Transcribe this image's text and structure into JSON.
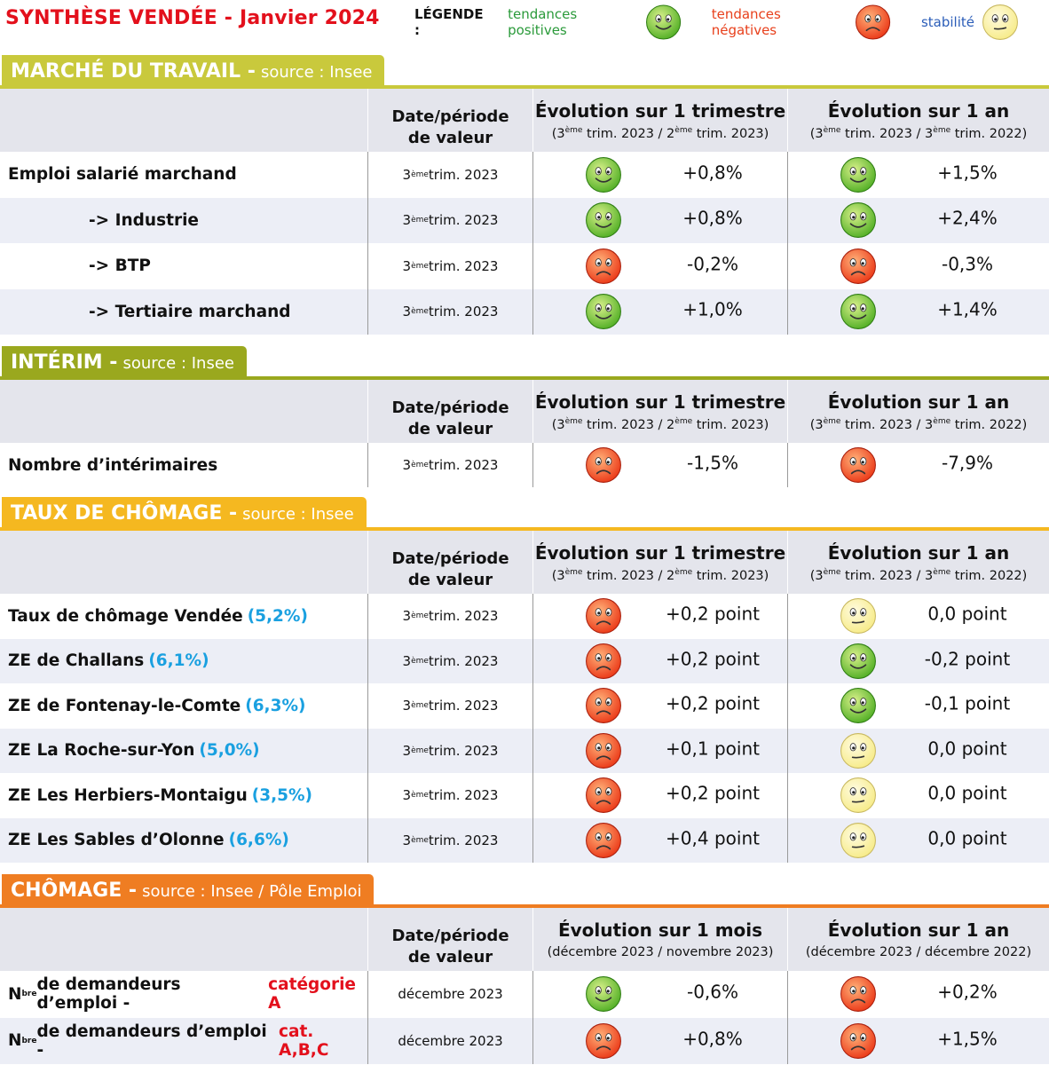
{
  "header": {
    "title": "SYNTHÈSE VENDÉE - Janvier 2024",
    "legend_label": "LÉGENDE :",
    "legend": [
      {
        "text": "tendances positives",
        "color": "#2a9a3a",
        "trend": "positive"
      },
      {
        "text": "tendances négatives",
        "color": "#e8401c",
        "trend": "negative"
      },
      {
        "text": "stabilité",
        "color": "#2b5db8",
        "trend": "stable"
      }
    ]
  },
  "sections": [
    {
      "title": "MARCHÉ DU TRAVAIL -",
      "source": "source : Insee",
      "color": "#c9c93c",
      "note_color": "#1aa0e0",
      "columns": [
        {
          "title": "Date/période de valeur"
        },
        {
          "title": "Évolution sur 1 trimestre",
          "sub": [
            "(3",
            "ème",
            " trim. 2023 / 2",
            "ème",
            " trim. 2023)"
          ]
        },
        {
          "title": "Évolution sur 1 an",
          "sub": [
            "(3",
            "ème",
            " trim. 2023 / 3",
            "ème",
            " trim. 2022)"
          ]
        }
      ],
      "rows": [
        {
          "label": [
            "Emploi salarié marchand"
          ],
          "level": 0,
          "date": [
            "3",
            "ème",
            " trim. 2023"
          ],
          "evolutions": [
            {
              "trend": "positive",
              "value": "+0,8%"
            },
            {
              "trend": "positive",
              "value": "+1,5%"
            }
          ]
        },
        {
          "label": [
            "-> Industrie"
          ],
          "level": 1,
          "date": [
            "3",
            "ème",
            " trim. 2023"
          ],
          "evolutions": [
            {
              "trend": "positive",
              "value": "+0,8%"
            },
            {
              "trend": "positive",
              "value": "+2,4%"
            }
          ]
        },
        {
          "label": [
            "-> BTP"
          ],
          "level": 1,
          "date": [
            "3",
            "ème",
            " trim. 2023"
          ],
          "evolutions": [
            {
              "trend": "negative",
              "value": "-0,2%"
            },
            {
              "trend": "negative",
              "value": "-0,3%"
            }
          ]
        },
        {
          "label": [
            "-> Tertiaire marchand"
          ],
          "level": 1,
          "date": [
            "3",
            "ème",
            " trim. 2023"
          ],
          "evolutions": [
            {
              "trend": "positive",
              "value": "+1,0%"
            },
            {
              "trend": "positive",
              "value": "+1,4%"
            }
          ]
        }
      ]
    },
    {
      "title": "INTÉRIM -",
      "source": "source : Insee",
      "color": "#9aa81e",
      "note_color": "#1aa0e0",
      "columns": [
        {
          "title": "Date/période de valeur"
        },
        {
          "title": "Évolution sur 1 trimestre",
          "sub": [
            "(3",
            "ème",
            " trim. 2023 / 2",
            "ème",
            " trim. 2023)"
          ]
        },
        {
          "title": "Évolution sur 1 an",
          "sub": [
            "(3",
            "ème",
            " trim. 2023 / 3",
            "ème",
            " trim. 2022)"
          ]
        }
      ],
      "rows": [
        {
          "label": [
            "Nombre d’intérimaires"
          ],
          "level": 0,
          "date": [
            "3",
            "ème",
            " trim. 2023"
          ],
          "evolutions": [
            {
              "trend": "negative",
              "value": "-1,5%"
            },
            {
              "trend": "negative",
              "value": "-7,9%"
            }
          ]
        }
      ]
    },
    {
      "title": "TAUX DE CHÔMAGE -",
      "source": "source : Insee",
      "color": "#f5b820",
      "note_color": "#1aa0e0",
      "columns": [
        {
          "title": "Date/période de valeur"
        },
        {
          "title": "Évolution sur 1 trimestre",
          "sub": [
            "(3",
            "ème",
            " trim. 2023 / 2",
            "ème",
            " trim. 2023)"
          ]
        },
        {
          "title": "Évolution sur 1 an",
          "sub": [
            "(3",
            "ème",
            " trim. 2023 / 3",
            "ème",
            " trim. 2022)"
          ]
        }
      ],
      "rows": [
        {
          "label": [
            "Taux de chômage Vendée "
          ],
          "note": "(5,2%)",
          "level": 0,
          "date": [
            "3",
            "ème",
            " trim. 2023"
          ],
          "evolutions": [
            {
              "trend": "negative",
              "value": "+0,2 point"
            },
            {
              "trend": "stable",
              "value": "0,0 point"
            }
          ]
        },
        {
          "label": [
            "ZE de Challans "
          ],
          "note": "(6,1%)",
          "level": 0,
          "date": [
            "3",
            "ème",
            " trim. 2023"
          ],
          "evolutions": [
            {
              "trend": "negative",
              "value": "+0,2 point"
            },
            {
              "trend": "positive",
              "value": "-0,2 point"
            }
          ]
        },
        {
          "label": [
            "ZE de Fontenay-le-Comte "
          ],
          "note": "(6,3%)",
          "level": 0,
          "date": [
            "3",
            "ème",
            " trim. 2023"
          ],
          "evolutions": [
            {
              "trend": "negative",
              "value": "+0,2 point"
            },
            {
              "trend": "positive",
              "value": "-0,1 point"
            }
          ]
        },
        {
          "label": [
            "ZE La Roche-sur-Yon "
          ],
          "note": "(5,0%)",
          "level": 0,
          "date": [
            "3",
            "ème",
            " trim. 2023"
          ],
          "evolutions": [
            {
              "trend": "negative",
              "value": "+0,1 point"
            },
            {
              "trend": "stable",
              "value": "0,0 point"
            }
          ]
        },
        {
          "label": [
            "ZE Les Herbiers-Montaigu "
          ],
          "note": "(3,5%)",
          "level": 0,
          "date": [
            "3",
            "ème",
            " trim. 2023"
          ],
          "evolutions": [
            {
              "trend": "negative",
              "value": "+0,2 point"
            },
            {
              "trend": "stable",
              "value": "0,0 point"
            }
          ]
        },
        {
          "label": [
            "ZE Les Sables d’Olonne "
          ],
          "note": "(6,6%)",
          "level": 0,
          "date": [
            "3",
            "ème",
            " trim. 2023"
          ],
          "evolutions": [
            {
              "trend": "negative",
              "value": "+0,4 point"
            },
            {
              "trend": "stable",
              "value": "0,0 point"
            }
          ]
        }
      ]
    },
    {
      "title": "CHÔMAGE -",
      "source": "source : Insee / Pôle Emploi",
      "color": "#ef7d22",
      "note_color": "#e3101c",
      "columns": [
        {
          "title": "Date/période de valeur"
        },
        {
          "title": "Évolution sur 1 mois",
          "sub": [
            "(décembre 2023 / novembre 2023)"
          ]
        },
        {
          "title": "Évolution sur 1 an",
          "sub": [
            "(décembre 2023 / décembre 2022)"
          ]
        }
      ],
      "rows": [
        {
          "label": [
            "N",
            "bre",
            " de demandeurs d’emploi - "
          ],
          "note": "catégorie A",
          "level": 0,
          "date": [
            "décembre 2023"
          ],
          "evolutions": [
            {
              "trend": "positive",
              "value": "-0,6%"
            },
            {
              "trend": "negative",
              "value": "+0,2%"
            }
          ]
        },
        {
          "label": [
            "N",
            "bre",
            " de demandeurs d’emploi - "
          ],
          "note": "cat. A,B,C",
          "level": 0,
          "date": [
            "décembre 2023"
          ],
          "evolutions": [
            {
              "trend": "negative",
              "value": "+0,8%"
            },
            {
              "trend": "negative",
              "value": "+1,5%"
            }
          ]
        }
      ]
    }
  ]
}
